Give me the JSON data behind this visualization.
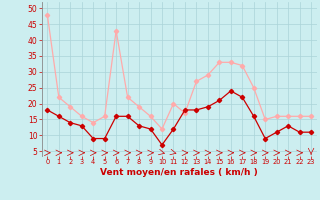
{
  "x": [
    0,
    1,
    2,
    3,
    4,
    5,
    6,
    7,
    8,
    9,
    10,
    11,
    12,
    13,
    14,
    15,
    16,
    17,
    18,
    19,
    20,
    21,
    22,
    23
  ],
  "wind_avg": [
    18,
    16,
    14,
    13,
    9,
    9,
    16,
    16,
    13,
    12,
    7,
    12,
    18,
    18,
    19,
    21,
    24,
    22,
    16,
    9,
    11,
    13,
    11,
    11
  ],
  "wind_gust": [
    48,
    22,
    19,
    16,
    14,
    16,
    43,
    22,
    19,
    16,
    12,
    20,
    17,
    27,
    29,
    33,
    33,
    32,
    25,
    15,
    16,
    16,
    16,
    16
  ],
  "bg_color": "#cceef0",
  "grid_color": "#aad4d8",
  "avg_color": "#cc0000",
  "gust_color": "#ffaaaa",
  "xlabel": "Vent moyen/en rafales ( km/h )",
  "xlabel_color": "#cc0000",
  "yticks": [
    5,
    10,
    15,
    20,
    25,
    30,
    35,
    40,
    45,
    50
  ],
  "ylim": [
    3.5,
    52
  ],
  "xlim": [
    -0.5,
    23.5
  ]
}
